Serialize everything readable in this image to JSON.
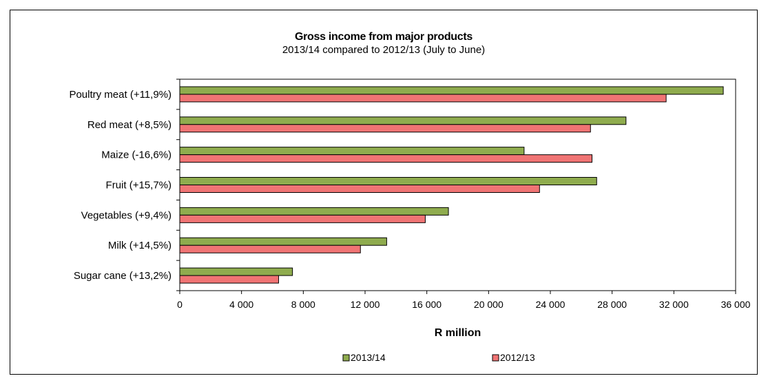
{
  "chart_data": {
    "type": "bar",
    "orientation": "horizontal",
    "title": "Gross income from major products",
    "subtitle": "2013/14 compared to 2012/13 (July to June)",
    "xlabel": "R million",
    "ylabel": "",
    "categories": [
      "Poultry meat (+11,9%)",
      "Red meat (+8,5%)",
      "Maize (-16,6%)",
      "Fruit (+15,7%)",
      "Vegetables (+9,4%)",
      "Milk (+14,5%)",
      "Sugar cane (+13,2%)"
    ],
    "series": [
      {
        "name": "2013/14",
        "color": "#8fac4e",
        "values": [
          35200,
          28900,
          22300,
          27000,
          17400,
          13400,
          7300
        ]
      },
      {
        "name": "2012/13",
        "color": "#f07474",
        "values": [
          31500,
          26600,
          26700,
          23300,
          15900,
          11700,
          6400
        ]
      }
    ],
    "xlim": [
      0,
      36000
    ],
    "xticks": [
      "0",
      "4 000",
      "8 000",
      "12 000",
      "16 000",
      "20 000",
      "24 000",
      "28 000",
      "32 000",
      "36 000"
    ],
    "xtick_values": [
      0,
      4000,
      8000,
      12000,
      16000,
      20000,
      24000,
      28000,
      32000,
      36000
    ],
    "grid": false,
    "legend_position": "bottom"
  }
}
